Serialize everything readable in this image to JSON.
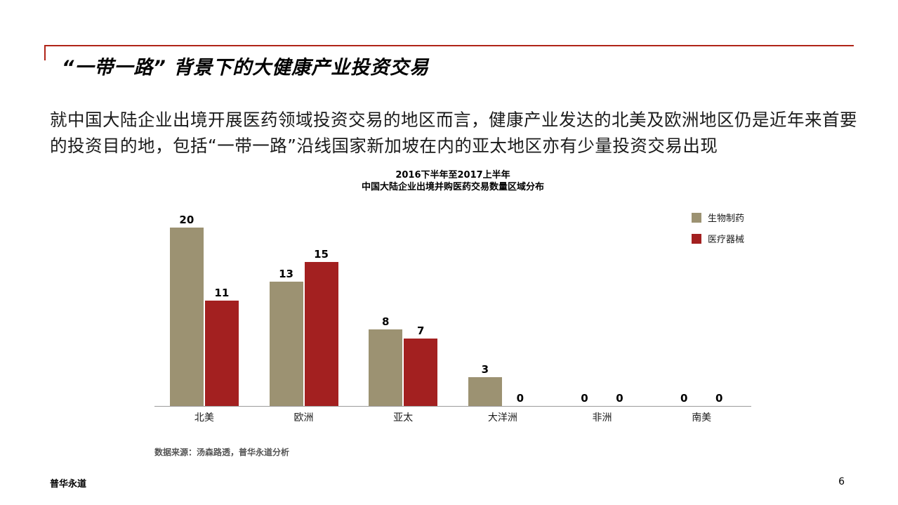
{
  "slide": {
    "title": "“一带一路” 背景下的大健康产业投资交易",
    "body": "就中国大陆企业出境开展医药领域投资交易的地区而言，健康产业发达的北美及欧洲地区仍是近年来首要的投资目的地，包括“一带一路”沿线国家新加坡在内的亚太地区亦有少量投资交易出现",
    "footer_left": "普华永道",
    "page_number": "6"
  },
  "colors": {
    "accent_rule": "#b02418",
    "bar_biopharma": "#9c9272",
    "bar_devices": "#a32020",
    "axis": "#9b9b9b",
    "source_text": "#555555"
  },
  "chart_data": {
    "type": "bar",
    "title_line1": "2016下半年至2017上半年",
    "title_line2": "中国大陆企业出境并购医药交易数量区域分布",
    "categories": [
      "北美",
      "欧洲",
      "亚太",
      "大洋洲",
      "非洲",
      "南美"
    ],
    "series": [
      {
        "name": "生物制药",
        "color": "#9c9272",
        "values": [
          20,
          13,
          8,
          3,
          0,
          0
        ]
      },
      {
        "name": "医疗器械",
        "color": "#a32020",
        "values": [
          11,
          15,
          7,
          0,
          0,
          0
        ]
      }
    ],
    "ylim": [
      0,
      20
    ],
    "grid": false,
    "legend_position": "top-right",
    "value_labels": true,
    "source": "数据来源：汤森路透，普华永道分析"
  }
}
